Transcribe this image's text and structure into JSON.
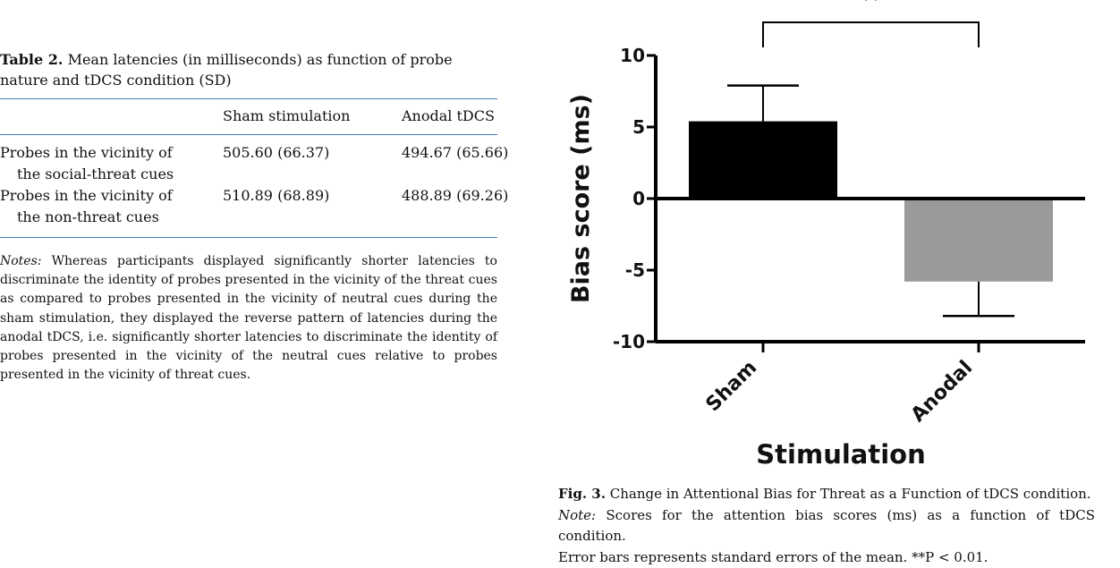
{
  "table": {
    "label": "Table 2.",
    "caption": "Mean latencies (in milliseconds) as function of probe nature and tDCS condition (SD)",
    "columns": [
      "Sham stimulation",
      "Anodal tDCS"
    ],
    "rows": [
      {
        "label_line1": "Probes in the vicinity of",
        "label_line2": "the social-threat cues",
        "sham": "505.60 (66.37)",
        "anodal": "494.67 (65.66)"
      },
      {
        "label_line1": "Probes in the vicinity of",
        "label_line2": "the non-threat cues",
        "sham": "510.89 (68.89)",
        "anodal": "488.89 (69.26)"
      }
    ],
    "notes_label": "Notes:",
    "notes_text": "Whereas participants displayed significantly shorter latencies to discriminate the identity of probes presented in the vicinity of the threat cues as compared to probes presented in the vicinity of neutral cues during the sham stimulation, they displayed the reverse pattern of latencies during the anodal tDCS, i.e. significantly shorter latencies to discriminate the identity of probes presented in the vicinity of the neutral cues relative to probes presented in the vicinity of threat cues."
  },
  "chart_data": {
    "type": "bar",
    "categories": [
      "Sham",
      "Anodal"
    ],
    "values": [
      5.4,
      -5.8
    ],
    "errors": [
      2.5,
      2.4
    ],
    "bar_colors": [
      "#000000",
      "#9a9a9a"
    ],
    "ylabel": "Bias score (ms)",
    "xlabel": "Stimulation",
    "ylim": [
      -10,
      10
    ],
    "yticks": [
      10,
      5,
      0,
      -5,
      -10
    ],
    "ytick_labels": [
      "10",
      "5",
      "0",
      "-5",
      "-10"
    ],
    "significance": "**",
    "grid": false,
    "legend": "none"
  },
  "figure": {
    "label": "Fig. 3.",
    "caption": "Change in Attentional Bias for Threat as a Function of tDCS condition.",
    "note_label": "Note:",
    "note_line1": "Scores for the attention bias scores (ms) as a function of tDCS condition.",
    "note_line2": "Error bars represents standard errors of the mean. **P < 0.01."
  }
}
